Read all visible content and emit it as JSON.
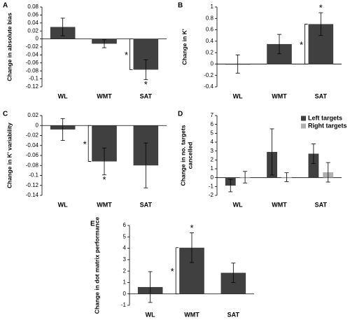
{
  "chart_data": [
    {
      "type": "bar",
      "panel": "A",
      "ylabel": "Change in absolute bias",
      "categories": [
        "WL",
        "WMT",
        "SAT"
      ],
      "values": [
        0.03,
        -0.012,
        -0.077
      ],
      "errors": [
        0.022,
        0.01,
        0.025
      ],
      "color": "#404040",
      "ylim": [
        -0.12,
        0.08
      ],
      "yticks": [
        0.08,
        0.06,
        0.04,
        0.02,
        0,
        -0.02,
        -0.04,
        -0.06,
        -0.08,
        -0.1,
        -0.12
      ],
      "bar_stars": [
        null,
        null,
        "*"
      ],
      "bracket_stars": [
        null,
        null,
        "*"
      ]
    },
    {
      "type": "bar",
      "panel": "B",
      "ylabel": "Change in K'",
      "categories": [
        "WL",
        "WMT",
        "SAT"
      ],
      "values": [
        0,
        0.35,
        0.7
      ],
      "errors": [
        0.16,
        0.17,
        0.2
      ],
      "color": "#404040",
      "ylim": [
        -0.4,
        1
      ],
      "yticks": [
        1,
        0.8,
        0.6,
        0.4,
        0.2,
        0,
        -0.2,
        -0.4
      ],
      "bar_stars": [
        null,
        null,
        "*"
      ],
      "bracket_stars": [
        null,
        null,
        "*"
      ]
    },
    {
      "type": "bar",
      "panel": "C",
      "ylabel": "Change in K' variability",
      "categories": [
        "WL",
        "WMT",
        "SAT"
      ],
      "values": [
        -0.008,
        -0.072,
        -0.08
      ],
      "errors": [
        0.022,
        0.027,
        0.045
      ],
      "color": "#404040",
      "ylim": [
        -0.14,
        0.02
      ],
      "yticks": [
        0.02,
        0,
        -0.02,
        -0.04,
        -0.06,
        -0.08,
        -0.1,
        -0.12,
        -0.14
      ],
      "bar_stars": [
        null,
        "*",
        null
      ],
      "bracket_stars": [
        null,
        "*",
        null
      ]
    },
    {
      "type": "grouped-bar",
      "panel": "D",
      "ylabel": [
        "Change in no. targets",
        "cancelled"
      ],
      "categories": [
        "WL",
        "WMT",
        "SAT"
      ],
      "series": [
        {
          "name": "Left targets",
          "color": "#404040",
          "values": [
            -0.9,
            2.9,
            2.7
          ],
          "errors": [
            0.7,
            2.6,
            1.1
          ]
        },
        {
          "name": "Right targets",
          "color": "#b0b0b0",
          "values": [
            0.05,
            0.05,
            0.6
          ],
          "errors": [
            0.65,
            0.5,
            1.1
          ]
        }
      ],
      "ylim": [
        -2,
        7
      ],
      "yticks": [
        7,
        6,
        5,
        4,
        3,
        2,
        1,
        0,
        -1,
        -2
      ],
      "legend": "top-right"
    },
    {
      "type": "bar",
      "panel": "E",
      "ylabel": "Change in dot matrix performance",
      "categories": [
        "WL",
        "WMT",
        "SAT"
      ],
      "values": [
        0.6,
        4.05,
        1.85
      ],
      "errors": [
        1.35,
        1.3,
        0.85
      ],
      "color": "#404040",
      "ylim": [
        -1,
        6
      ],
      "yticks": [
        6,
        5,
        4,
        3,
        2,
        1,
        0,
        -1
      ],
      "bar_stars": [
        null,
        "*",
        null
      ],
      "bracket_stars": [
        null,
        "*",
        null
      ]
    }
  ]
}
